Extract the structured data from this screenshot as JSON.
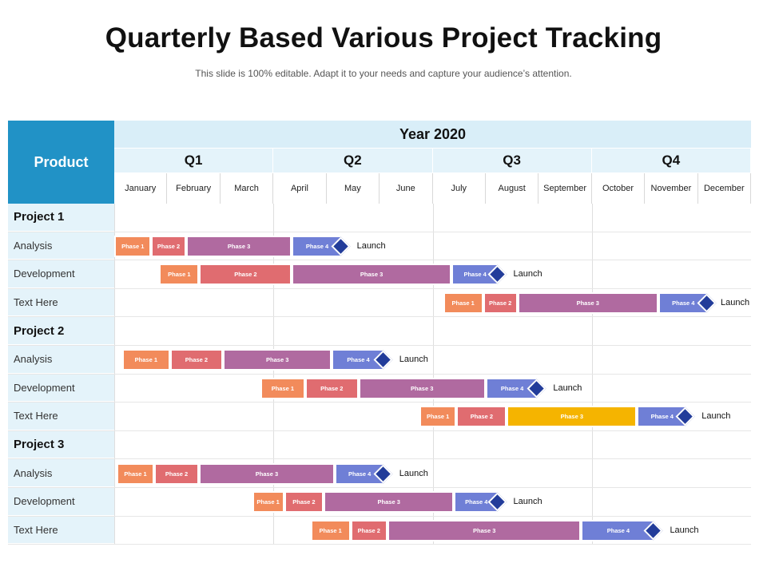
{
  "title": "Quarterly Based Various Project Tracking",
  "subtitle": "This slide is 100% editable. Adapt it to your needs and capture your audience’s attention.",
  "header": {
    "product": "Product",
    "year": "Year 2020",
    "quarters": [
      "Q1",
      "Q2",
      "Q3",
      "Q4"
    ],
    "months": [
      "January",
      "February",
      "March",
      "April",
      "May",
      "June",
      "July",
      "August",
      "September",
      "October",
      "November",
      "December"
    ]
  },
  "colors": {
    "phase1": "#f28b5b",
    "phase2": "#e06c70",
    "phase3": "#b06aa0",
    "phase3_alt": "#f5b400",
    "phase4": "#6f7fd6",
    "milestone": "#223c9a",
    "header_accent": "#2192c6"
  },
  "milestone_icon": "diamond-icon",
  "chart_data": {
    "type": "gantt",
    "time_axis": "months 2020 (0 = start of January, 12 = end of December)",
    "rows": [
      {
        "label": "Project 1",
        "kind": "project"
      },
      {
        "label": "Analysis",
        "kind": "task",
        "phases": [
          {
            "label": "Phase 1",
            "start": 0.0,
            "end": 0.7
          },
          {
            "label": "Phase 2",
            "start": 0.7,
            "end": 1.35
          },
          {
            "label": "Phase 3",
            "start": 1.35,
            "end": 3.35
          },
          {
            "label": "Phase 4",
            "start": 3.35,
            "end": 4.3
          }
        ],
        "milestone": "Launch"
      },
      {
        "label": "Development",
        "kind": "task",
        "phases": [
          {
            "label": "Phase 1",
            "start": 0.85,
            "end": 1.6
          },
          {
            "label": "Phase 2",
            "start": 1.6,
            "end": 3.35
          },
          {
            "label": "Phase 3",
            "start": 3.35,
            "end": 6.35
          },
          {
            "label": "Phase 4",
            "start": 6.35,
            "end": 7.25
          }
        ],
        "milestone": "Launch"
      },
      {
        "label": "Text Here",
        "kind": "task",
        "phases": [
          {
            "label": "Phase 1",
            "start": 6.2,
            "end": 6.95
          },
          {
            "label": "Phase 2",
            "start": 6.95,
            "end": 7.6
          },
          {
            "label": "Phase 3",
            "start": 7.6,
            "end": 10.25
          },
          {
            "label": "Phase 4",
            "start": 10.25,
            "end": 11.2
          }
        ],
        "milestone": "Launch"
      },
      {
        "label": "Project 2",
        "kind": "project"
      },
      {
        "label": "Analysis",
        "kind": "task",
        "phases": [
          {
            "label": "Phase 1",
            "start": 0.15,
            "end": 1.05
          },
          {
            "label": "Phase 2",
            "start": 1.05,
            "end": 2.05
          },
          {
            "label": "Phase 3",
            "start": 2.05,
            "end": 4.1
          },
          {
            "label": "Phase 4",
            "start": 4.1,
            "end": 5.1
          }
        ],
        "milestone": "Launch"
      },
      {
        "label": "Development",
        "kind": "task",
        "phases": [
          {
            "label": "Phase 1",
            "start": 2.75,
            "end": 3.6
          },
          {
            "label": "Phase 2",
            "start": 3.6,
            "end": 4.6
          },
          {
            "label": "Phase 3",
            "start": 4.6,
            "end": 7.0
          },
          {
            "label": "Phase 4",
            "start": 7.0,
            "end": 8.0
          }
        ],
        "milestone": "Launch"
      },
      {
        "label": "Text Here",
        "kind": "task",
        "phases": [
          {
            "label": "Phase 1",
            "start": 5.75,
            "end": 6.45
          },
          {
            "label": "Phase 2",
            "start": 6.45,
            "end": 7.4
          },
          {
            "label": "Phase 3",
            "start": 7.4,
            "end": 9.85,
            "color": "phase3_alt"
          },
          {
            "label": "Phase 4",
            "start": 9.85,
            "end": 10.8
          }
        ],
        "milestone": "Launch"
      },
      {
        "label": "Project 3",
        "kind": "project"
      },
      {
        "label": "Analysis",
        "kind": "task",
        "phases": [
          {
            "label": "Phase 1",
            "start": 0.05,
            "end": 0.75
          },
          {
            "label": "Phase 2",
            "start": 0.75,
            "end": 1.6
          },
          {
            "label": "Phase 3",
            "start": 1.6,
            "end": 4.15
          },
          {
            "label": "Phase 4",
            "start": 4.15,
            "end": 5.1
          }
        ],
        "milestone": "Launch"
      },
      {
        "label": "Development",
        "kind": "task",
        "phases": [
          {
            "label": "Phase 1",
            "start": 2.6,
            "end": 3.2
          },
          {
            "label": "Phase 2",
            "start": 3.2,
            "end": 3.95
          },
          {
            "label": "Phase 3",
            "start": 3.95,
            "end": 6.4
          },
          {
            "label": "Phase 4",
            "start": 6.4,
            "end": 7.25
          }
        ],
        "milestone": "Launch"
      },
      {
        "label": "Text Here",
        "kind": "task",
        "phases": [
          {
            "label": "Phase 1",
            "start": 3.7,
            "end": 4.45
          },
          {
            "label": "Phase 2",
            "start": 4.45,
            "end": 5.15
          },
          {
            "label": "Phase 3",
            "start": 5.15,
            "end": 8.8
          },
          {
            "label": "Phase 4",
            "start": 8.8,
            "end": 10.2
          }
        ],
        "milestone": "Launch"
      }
    ]
  }
}
